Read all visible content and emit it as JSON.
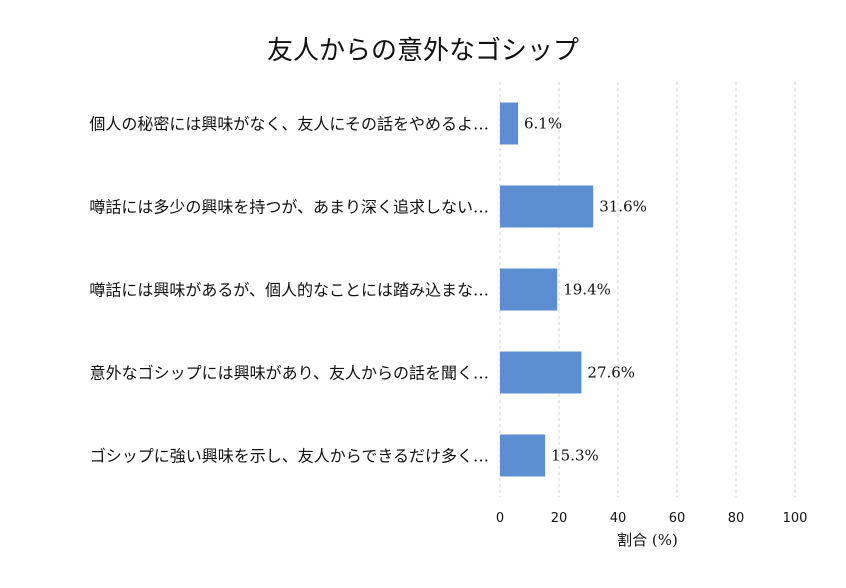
{
  "chart_data": {
    "type": "bar",
    "orientation": "horizontal",
    "title": "友人からの意外なゴシップ",
    "xlabel": "割合 (%)",
    "ylabel": "",
    "xlim": [
      0,
      100
    ],
    "xticks": [
      "0",
      "20",
      "40",
      "60",
      "80",
      "100"
    ],
    "grid": "vertical-dashed",
    "bar_color": "#5b8fd1",
    "categories": [
      "個人の秘密には興味がなく、友人にその話をやめるよ…",
      "噂話には多少の興味を持つが、あまり深く追求しない…",
      "噂話には興味があるが、個人的なことには踏み込まな…",
      "意外なゴシップには興味があり、友人からの話を聞く…",
      "ゴシップに強い興味を示し、友人からできるだけ多く…"
    ],
    "values": [
      6.1,
      31.6,
      19.4,
      27.6,
      15.3
    ],
    "value_labels": [
      "6.1%",
      "31.6%",
      "19.4%",
      "27.6%",
      "15.3%"
    ]
  }
}
